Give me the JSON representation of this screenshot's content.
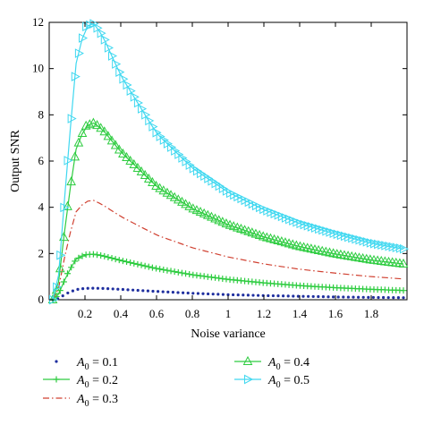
{
  "chart_data": {
    "type": "line",
    "title": "",
    "xlabel": "Noise variance",
    "ylabel": "Output SNR",
    "xlim": [
      0,
      2.0
    ],
    "ylim": [
      0,
      12
    ],
    "xticks": [
      0.2,
      0.4,
      0.6,
      0.8,
      1,
      1.2,
      1.4,
      1.6,
      1.8
    ],
    "xtick_labels": [
      "0.2",
      "0.4",
      "0.6",
      "0.8",
      "1",
      "1.2",
      "1.4",
      "1.6",
      "1.8"
    ],
    "yticks": [
      0,
      2,
      4,
      6,
      8,
      10,
      12
    ],
    "ytick_labels": [
      "0",
      "2",
      "4",
      "6",
      "8",
      "10",
      "12"
    ],
    "grid": false,
    "legend_position": "bottom",
    "legend": [
      {
        "text": "A0 = 0.1",
        "base": "A",
        "sub": "0",
        "rest": " = 0.1"
      },
      {
        "text": "A0 = 0.2",
        "base": "A",
        "sub": "0",
        "rest": " = 0.2"
      },
      {
        "text": "A0 = 0.3",
        "base": "A",
        "sub": "0",
        "rest": " = 0.3"
      },
      {
        "text": "A0 = 0.4",
        "base": "A",
        "sub": "0",
        "rest": " = 0.4"
      },
      {
        "text": "A0 = 0.5",
        "base": "A",
        "sub": "0",
        "rest": " = 0.5"
      }
    ],
    "series": [
      {
        "A0": 0.1,
        "color": "#1f2f9f",
        "style": "dots",
        "marker": "dot",
        "x": [
          0.02,
          0.05,
          0.1,
          0.15,
          0.2,
          0.25,
          0.3,
          0.4,
          0.6,
          0.8,
          1.0,
          1.2,
          1.4,
          1.6,
          1.8,
          1.98
        ],
        "y": [
          0.0,
          0.05,
          0.28,
          0.44,
          0.49,
          0.5,
          0.49,
          0.45,
          0.36,
          0.28,
          0.22,
          0.18,
          0.15,
          0.12,
          0.1,
          0.09
        ]
      },
      {
        "A0": 0.2,
        "color": "#2ecc40",
        "style": "solid",
        "marker": "plus",
        "x": [
          0.02,
          0.05,
          0.1,
          0.15,
          0.2,
          0.25,
          0.3,
          0.4,
          0.6,
          0.8,
          1.0,
          1.2,
          1.4,
          1.6,
          1.8,
          1.98
        ],
        "y": [
          0.0,
          0.2,
          1.1,
          1.75,
          1.95,
          1.97,
          1.9,
          1.7,
          1.35,
          1.08,
          0.88,
          0.73,
          0.61,
          0.52,
          0.45,
          0.4
        ]
      },
      {
        "A0": 0.3,
        "color": "#d04030",
        "style": "dashdot",
        "marker": "none",
        "x": [
          0.02,
          0.05,
          0.1,
          0.15,
          0.2,
          0.25,
          0.3,
          0.4,
          0.6,
          0.8,
          1.0,
          1.2,
          1.4,
          1.6,
          1.8,
          1.98
        ],
        "y": [
          0.0,
          0.4,
          2.4,
          3.8,
          4.25,
          4.3,
          4.1,
          3.6,
          2.8,
          2.25,
          1.85,
          1.55,
          1.32,
          1.15,
          1.0,
          0.9
        ]
      },
      {
        "A0": 0.4,
        "color": "#2ecc40",
        "style": "solid",
        "marker": "triangle",
        "x": [
          0.02,
          0.05,
          0.1,
          0.15,
          0.2,
          0.25,
          0.3,
          0.4,
          0.6,
          0.8,
          1.0,
          1.2,
          1.4,
          1.6,
          1.8,
          1.98
        ],
        "y": [
          0.0,
          0.6,
          3.9,
          6.5,
          7.5,
          7.65,
          7.35,
          6.4,
          4.9,
          3.95,
          3.25,
          2.72,
          2.3,
          1.98,
          1.72,
          1.55
        ]
      },
      {
        "A0": 0.5,
        "color": "#40d8f0",
        "style": "solid",
        "marker": "triangle-right",
        "x": [
          0.02,
          0.05,
          0.1,
          0.15,
          0.2,
          0.25,
          0.3,
          0.4,
          0.6,
          0.8,
          1.0,
          1.2,
          1.4,
          1.6,
          1.8,
          1.98
        ],
        "y": [
          0.0,
          0.8,
          5.8,
          10.2,
          11.8,
          11.95,
          11.4,
          9.7,
          7.2,
          5.7,
          4.65,
          3.9,
          3.3,
          2.85,
          2.45,
          2.2
        ]
      }
    ]
  }
}
